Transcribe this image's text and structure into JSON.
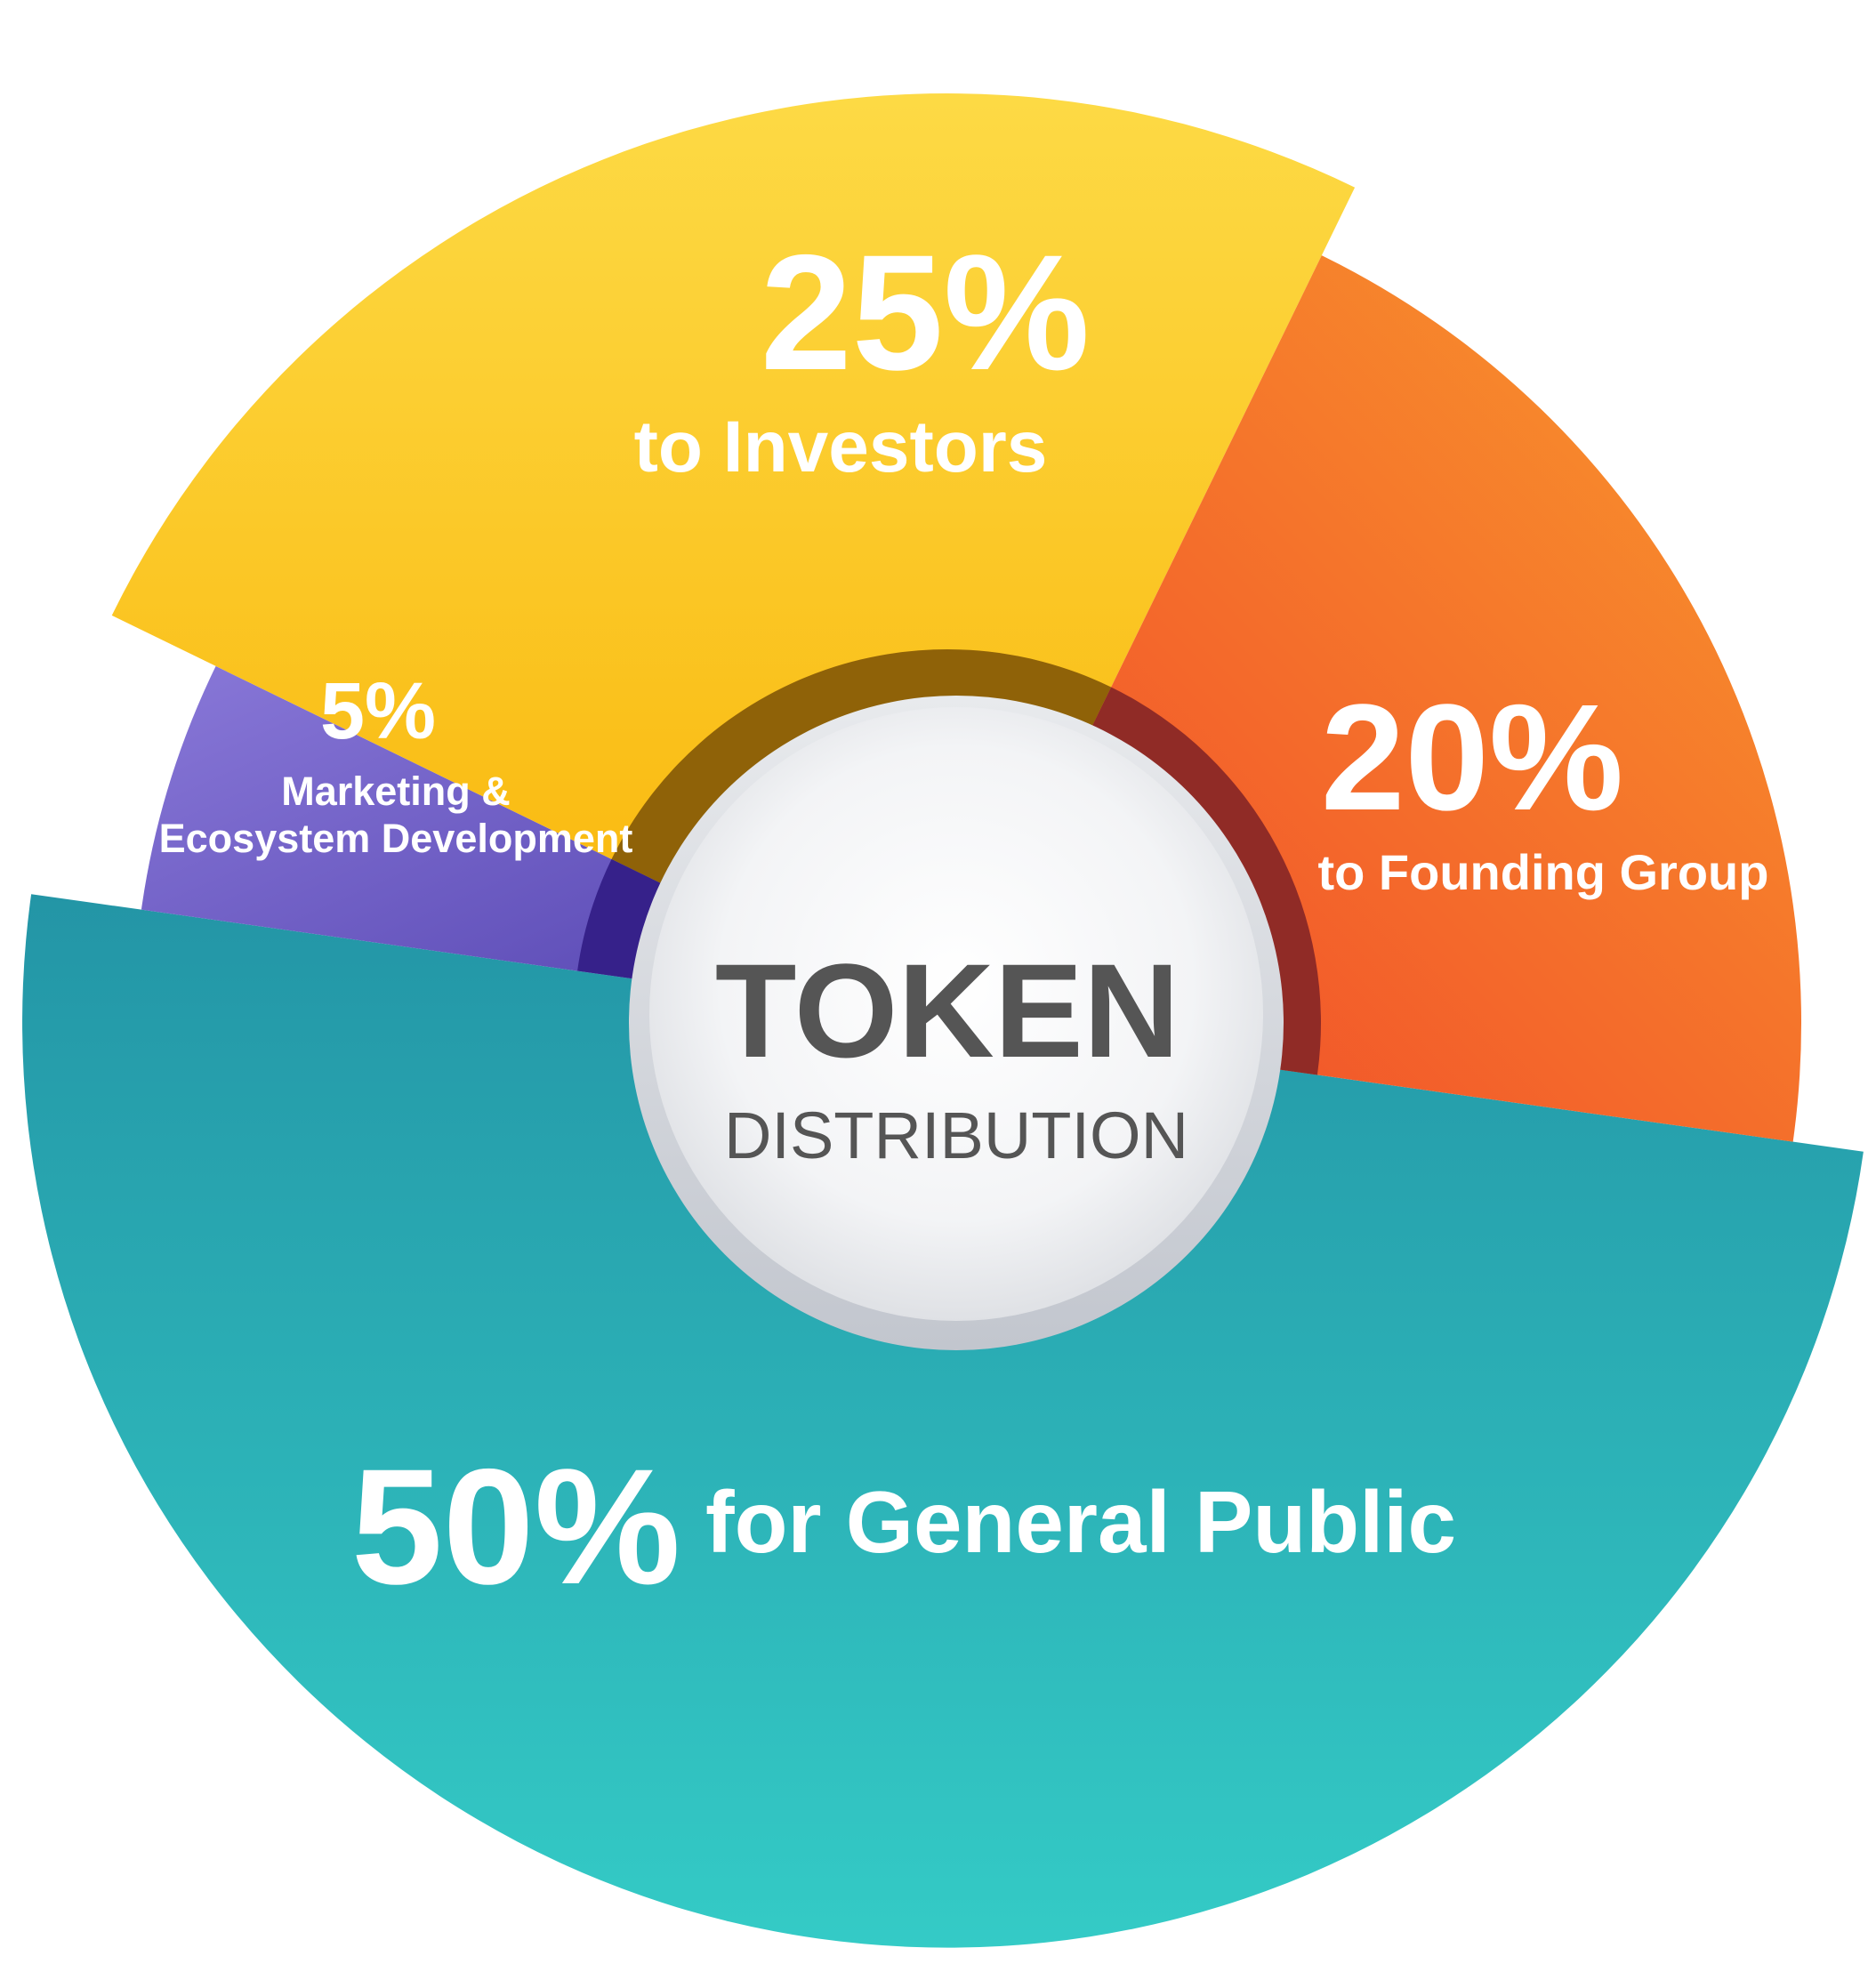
{
  "chart_data": {
    "type": "pie",
    "title": "TOKEN",
    "subtitle": "DISTRIBUTION",
    "slices": [
      {
        "label": "for General Public",
        "value": 50,
        "value_text": "50%",
        "color_start": "#33cbc6",
        "color_end": "#2398a6"
      },
      {
        "label": "Marketing & Ecosystem Development",
        "value": 5,
        "value_text": "5%",
        "color_start": "#8676d6",
        "color_end": "#5646b1"
      },
      {
        "label": "to Investors",
        "value": 25,
        "value_text": "25%",
        "color_start": "#fdd83f",
        "color_end": "#f9b70a"
      },
      {
        "label": "to Founding Group",
        "value": 20,
        "value_text": "20%",
        "color_start": "#f8952c",
        "color_end": "#f25129"
      }
    ],
    "legend": "none"
  }
}
